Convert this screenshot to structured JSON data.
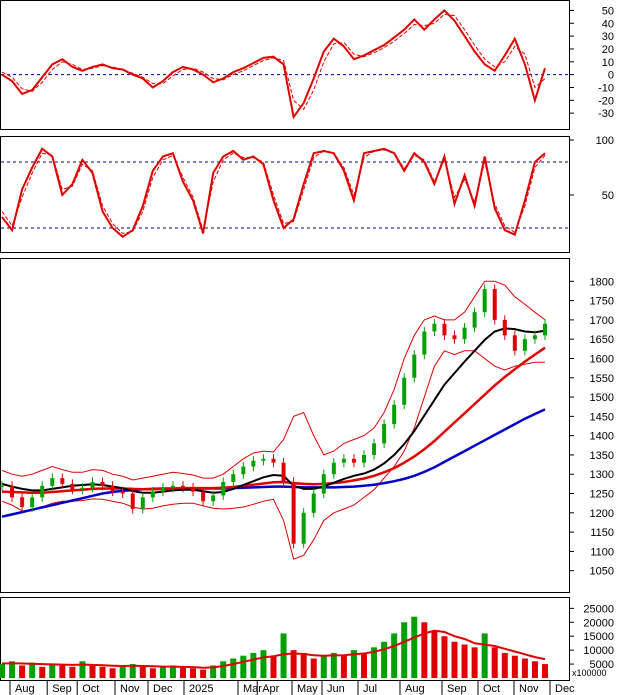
{
  "colors": {
    "up": "#00a000",
    "down": "#e00000",
    "ma_short": "#000000",
    "ma_mid": "#e00000",
    "ma_long": "#0000c8",
    "bollinger": "#e00000",
    "oscillator": "#e00000",
    "reference": "#0000a0",
    "volume_ma": "#e00000"
  },
  "chart_data": [
    {
      "type": "line",
      "panel": "momentum-oscillator",
      "title": "",
      "ylim": [
        -40,
        55
      ],
      "yticks": [
        "50",
        "40",
        "30",
        "20",
        "10",
        "0",
        "-10",
        "-20",
        "-30"
      ],
      "reference_lines": [
        0
      ],
      "x": [
        0,
        10,
        20,
        30,
        40,
        50,
        60,
        70,
        80,
        90,
        100,
        110,
        120,
        130,
        140,
        150,
        160,
        170,
        180,
        190,
        200,
        210,
        220,
        230,
        240,
        250,
        260,
        270,
        280,
        290,
        300,
        310,
        320,
        330,
        340,
        350,
        360,
        370,
        380,
        390,
        400,
        410,
        420,
        430,
        440,
        450,
        460,
        470,
        480,
        490,
        500,
        510,
        520,
        530,
        540
      ],
      "series": [
        {
          "values": [
            0,
            -5,
            -15,
            -12,
            -2,
            8,
            12,
            6,
            3,
            6,
            8,
            5,
            4,
            0,
            -3,
            -10,
            -5,
            2,
            6,
            4,
            0,
            -6,
            -3,
            2,
            5,
            9,
            13,
            14,
            8,
            -33,
            -22,
            -3,
            18,
            28,
            22,
            12,
            15,
            19,
            23,
            29,
            35,
            43,
            35,
            43,
            50,
            42,
            30,
            18,
            8,
            3,
            15,
            28,
            8,
            -20,
            5
          ]
        },
        {
          "values": [
            2,
            -2,
            -11,
            -13,
            -6,
            4,
            10,
            8,
            4,
            5,
            7,
            6,
            4,
            1,
            -2,
            -7,
            -7,
            -1,
            4,
            5,
            2,
            -3,
            -4,
            0,
            3,
            7,
            11,
            13,
            11,
            -20,
            -27,
            -12,
            10,
            24,
            25,
            16,
            14,
            17,
            21,
            26,
            32,
            39,
            38,
            40,
            47,
            46,
            35,
            23,
            12,
            6,
            10,
            22,
            16,
            -10,
            -3
          ]
        }
      ]
    },
    {
      "type": "line",
      "panel": "stochastic-oscillator",
      "title": "",
      "ylim": [
        0,
        100
      ],
      "yticks": [
        "100",
        "50"
      ],
      "reference_lines": [
        20,
        80
      ],
      "x": [
        0,
        10,
        20,
        30,
        40,
        50,
        60,
        70,
        80,
        90,
        100,
        110,
        120,
        130,
        140,
        150,
        160,
        170,
        180,
        190,
        200,
        210,
        220,
        230,
        240,
        250,
        260,
        270,
        280,
        290,
        300,
        310,
        320,
        330,
        340,
        350,
        360,
        370,
        380,
        390,
        400,
        410,
        420,
        430,
        440,
        450,
        460,
        470,
        480,
        490,
        500,
        510,
        520,
        530,
        540
      ],
      "series": [
        {
          "values": [
            30,
            18,
            55,
            75,
            92,
            85,
            50,
            60,
            82,
            70,
            35,
            20,
            12,
            18,
            40,
            72,
            85,
            88,
            62,
            45,
            15,
            70,
            85,
            90,
            82,
            85,
            78,
            45,
            20,
            28,
            60,
            88,
            90,
            88,
            72,
            45,
            88,
            90,
            92,
            88,
            72,
            88,
            80,
            60,
            85,
            42,
            68,
            40,
            85,
            38,
            18,
            14,
            45,
            80,
            88
          ]
        },
        {
          "values": [
            35,
            22,
            48,
            70,
            88,
            86,
            55,
            58,
            78,
            72,
            40,
            24,
            15,
            17,
            35,
            66,
            82,
            86,
            66,
            48,
            18,
            62,
            82,
            88,
            84,
            84,
            80,
            50,
            24,
            26,
            55,
            84,
            90,
            88,
            75,
            50,
            84,
            90,
            91,
            88,
            74,
            86,
            82,
            62,
            82,
            48,
            64,
            44,
            80,
            42,
            22,
            16,
            40,
            75,
            86
          ]
        }
      ]
    },
    {
      "type": "line",
      "panel": "price",
      "title": "",
      "ylim": [
        1000,
        1850
      ],
      "yticks": [
        "1800",
        "1750",
        "1700",
        "1650",
        "1600",
        "1550",
        "1500",
        "1450",
        "1400",
        "1350",
        "1300",
        "1250",
        "1200",
        "1150",
        "1100",
        "1050"
      ],
      "x": [
        0,
        10,
        20,
        30,
        40,
        50,
        60,
        70,
        80,
        90,
        100,
        110,
        120,
        130,
        140,
        150,
        160,
        170,
        180,
        190,
        200,
        210,
        220,
        230,
        240,
        250,
        260,
        270,
        280,
        290,
        300,
        310,
        320,
        330,
        340,
        350,
        360,
        370,
        380,
        390,
        400,
        410,
        420,
        430,
        440,
        450,
        460,
        470,
        480,
        490,
        500,
        510,
        520,
        530,
        540
      ],
      "series": [
        {
          "name": "close",
          "values": [
            1270,
            1240,
            1215,
            1240,
            1270,
            1290,
            1275,
            1260,
            1265,
            1280,
            1270,
            1255,
            1250,
            1210,
            1240,
            1255,
            1265,
            1270,
            1265,
            1255,
            1230,
            1245,
            1280,
            1300,
            1320,
            1335,
            1340,
            1330,
            1280,
            1120,
            1200,
            1250,
            1300,
            1330,
            1340,
            1330,
            1350,
            1380,
            1430,
            1480,
            1550,
            1610,
            1670,
            1690,
            1660,
            1650,
            1680,
            1720,
            1780,
            1700,
            1660,
            1620,
            1650,
            1660,
            1690
          ]
        },
        {
          "name": "short-ma",
          "values": [
            1275,
            1268,
            1262,
            1258,
            1258,
            1262,
            1266,
            1270,
            1272,
            1274,
            1272,
            1268,
            1264,
            1256,
            1252,
            1252,
            1255,
            1258,
            1260,
            1260,
            1256,
            1252,
            1254,
            1262,
            1272,
            1282,
            1292,
            1298,
            1296,
            1270,
            1262,
            1262,
            1268,
            1278,
            1288,
            1296,
            1302,
            1312,
            1328,
            1350,
            1378,
            1412,
            1452,
            1492,
            1532,
            1562,
            1592,
            1620,
            1648,
            1670,
            1678,
            1676,
            1670,
            1668,
            1672
          ]
        },
        {
          "name": "mid-ma",
          "values": [
            1255,
            1254,
            1253,
            1252,
            1252,
            1254,
            1256,
            1258,
            1260,
            1262,
            1263,
            1263,
            1263,
            1262,
            1261,
            1261,
            1262,
            1263,
            1264,
            1264,
            1264,
            1264,
            1265,
            1267,
            1270,
            1273,
            1276,
            1279,
            1280,
            1277,
            1275,
            1274,
            1275,
            1277,
            1280,
            1284,
            1289,
            1296,
            1305,
            1316,
            1330,
            1346,
            1365,
            1386,
            1410,
            1434,
            1458,
            1482,
            1506,
            1530,
            1552,
            1572,
            1592,
            1610,
            1628
          ]
        },
        {
          "name": "long-ma",
          "values": [
            1190,
            1196,
            1202,
            1208,
            1214,
            1220,
            1226,
            1232,
            1238,
            1244,
            1250,
            1254,
            1257,
            1259,
            1261,
            1262,
            1263,
            1263,
            1263,
            1263,
            1263,
            1263,
            1263,
            1264,
            1265,
            1266,
            1267,
            1268,
            1268,
            1267,
            1266,
            1266,
            1266,
            1266,
            1267,
            1268,
            1270,
            1273,
            1277,
            1282,
            1288,
            1296,
            1306,
            1318,
            1332,
            1346,
            1360,
            1374,
            1388,
            1402,
            1416,
            1430,
            1444,
            1456,
            1468
          ]
        },
        {
          "name": "upper-band",
          "values": [
            1310,
            1300,
            1295,
            1300,
            1310,
            1320,
            1312,
            1305,
            1305,
            1312,
            1310,
            1300,
            1295,
            1285,
            1290,
            1295,
            1300,
            1305,
            1302,
            1298,
            1290,
            1290,
            1300,
            1320,
            1340,
            1355,
            1360,
            1358,
            1390,
            1450,
            1460,
            1400,
            1350,
            1360,
            1380,
            1390,
            1400,
            1420,
            1460,
            1520,
            1600,
            1660,
            1700,
            1710,
            1700,
            1700,
            1720,
            1760,
            1800,
            1800,
            1790,
            1760,
            1740,
            1720,
            1700
          ]
        },
        {
          "name": "lower-band",
          "values": [
            1230,
            1220,
            1205,
            1205,
            1215,
            1225,
            1230,
            1230,
            1232,
            1236,
            1235,
            1230,
            1225,
            1215,
            1210,
            1212,
            1218,
            1222,
            1225,
            1225,
            1218,
            1212,
            1210,
            1212,
            1215,
            1222,
            1230,
            1235,
            1180,
            1080,
            1090,
            1130,
            1180,
            1200,
            1210,
            1220,
            1240,
            1260,
            1290,
            1320,
            1360,
            1420,
            1500,
            1580,
            1620,
            1610,
            1620,
            1620,
            1600,
            1580,
            1570,
            1580,
            1585,
            1590,
            1590
          ]
        }
      ]
    },
    {
      "type": "bar",
      "panel": "volume",
      "title": "",
      "unit": "x100000",
      "ylim": [
        0,
        28000
      ],
      "yticks": [
        "25000",
        "20000",
        "15000",
        "10000",
        "5000"
      ],
      "x": [
        0,
        10,
        20,
        30,
        40,
        50,
        60,
        70,
        80,
        90,
        100,
        110,
        120,
        130,
        140,
        150,
        160,
        170,
        180,
        190,
        200,
        210,
        220,
        230,
        240,
        250,
        260,
        270,
        280,
        290,
        300,
        310,
        320,
        330,
        340,
        350,
        360,
        370,
        380,
        390,
        400,
        410,
        420,
        430,
        440,
        450,
        460,
        470,
        480,
        490,
        500,
        510,
        520,
        530,
        540
      ],
      "values": [
        5000,
        6000,
        4500,
        5500,
        4000,
        5000,
        4500,
        4000,
        6000,
        4500,
        4000,
        3500,
        4000,
        5000,
        4500,
        3500,
        4000,
        4500,
        4000,
        3500,
        3000,
        4500,
        6000,
        7000,
        8000,
        9000,
        10000,
        8000,
        16000,
        10000,
        9000,
        7000,
        8000,
        9000,
        8000,
        10000,
        9000,
        11000,
        13000,
        16000,
        20000,
        22000,
        20000,
        17000,
        15000,
        13000,
        12000,
        11000,
        16000,
        11000,
        9000,
        8000,
        7000,
        6000,
        5000
      ],
      "series": [
        {
          "name": "volume-ma",
          "values": [
            5200,
            5300,
            5200,
            5100,
            5000,
            4900,
            4800,
            4700,
            4800,
            4700,
            4600,
            4400,
            4300,
            4400,
            4300,
            4200,
            4100,
            4100,
            4000,
            3900,
            3700,
            3800,
            4300,
            5000,
            5800,
            6600,
            7400,
            7800,
            8500,
            8800,
            8600,
            8200,
            8000,
            8100,
            8200,
            8500,
            8800,
            9400,
            10300,
            11500,
            13000,
            14500,
            16000,
            17000,
            16500,
            15000,
            14000,
            12500,
            12000,
            11500,
            10500,
            9500,
            8500,
            7500,
            6800
          ]
        }
      ]
    }
  ],
  "x_axis": {
    "months": [
      "Aug",
      "Sep",
      "Oct",
      "Nov",
      "Dec",
      "2025",
      "Mar",
      "Apr",
      "May",
      "Jun",
      "Jul",
      "Aug",
      "Sep",
      "Oct",
      "Nov",
      "Dec"
    ],
    "month_x": [
      0,
      62,
      112,
      175,
      230,
      290,
      380,
      412,
      470,
      520,
      580,
      650,
      720,
      780,
      840,
      900
    ]
  }
}
